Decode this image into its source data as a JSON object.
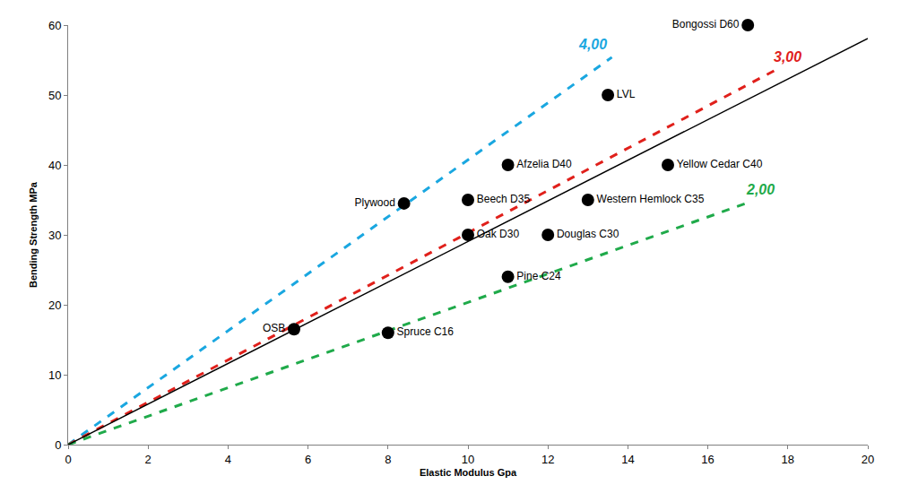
{
  "chart_data": {
    "type": "scatter",
    "x_label": "Elastic Modulus Gpa",
    "y_label": "Bending Strength MPa",
    "xlim": [
      0,
      20
    ],
    "xticks": [
      0,
      2,
      4,
      6,
      8,
      10,
      12,
      14,
      16,
      18,
      20
    ],
    "ylim": [
      0,
      60
    ],
    "yticks": [
      0,
      10,
      20,
      30,
      40,
      50,
      60
    ],
    "grid": false,
    "series": [
      {
        "type": "scatter",
        "color": "#000000",
        "marker": "circle",
        "x": [
          17,
          13.5,
          11,
          15,
          8.4,
          10,
          13,
          10,
          12,
          11,
          5.65,
          8
        ],
        "values": [
          60,
          50,
          40,
          40,
          34.5,
          35,
          35,
          30,
          30,
          24,
          16.5,
          16
        ],
        "labels": [
          "Bongossi D60",
          "LVL",
          "Afzelia D40",
          "Yellow Cedar C40",
          "Plywood",
          "Beech D35",
          "Western Hemlock C35",
          "Oak D30",
          "Douglas C30",
          "Pine C24",
          "OSB",
          "Spruce C16"
        ]
      },
      {
        "type": "line",
        "name": "4,00",
        "color": "#1aa7e0",
        "line_style": "dashed",
        "x": [
          0,
          13.6
        ],
        "values": [
          0,
          55.4
        ]
      },
      {
        "type": "line",
        "name": "3,00",
        "color": "#e0201b",
        "line_style": "dashed",
        "x": [
          0,
          17.7
        ],
        "values": [
          0,
          53.6
        ]
      },
      {
        "type": "line",
        "name": "2,00",
        "color": "#1faa4a",
        "line_style": "dashed",
        "x": [
          0,
          17.0
        ],
        "values": [
          0,
          34.6
        ]
      },
      {
        "type": "line",
        "color": "#000000",
        "line_style": "solid",
        "x": [
          0,
          20
        ],
        "values": [
          0,
          58.1
        ]
      }
    ]
  }
}
